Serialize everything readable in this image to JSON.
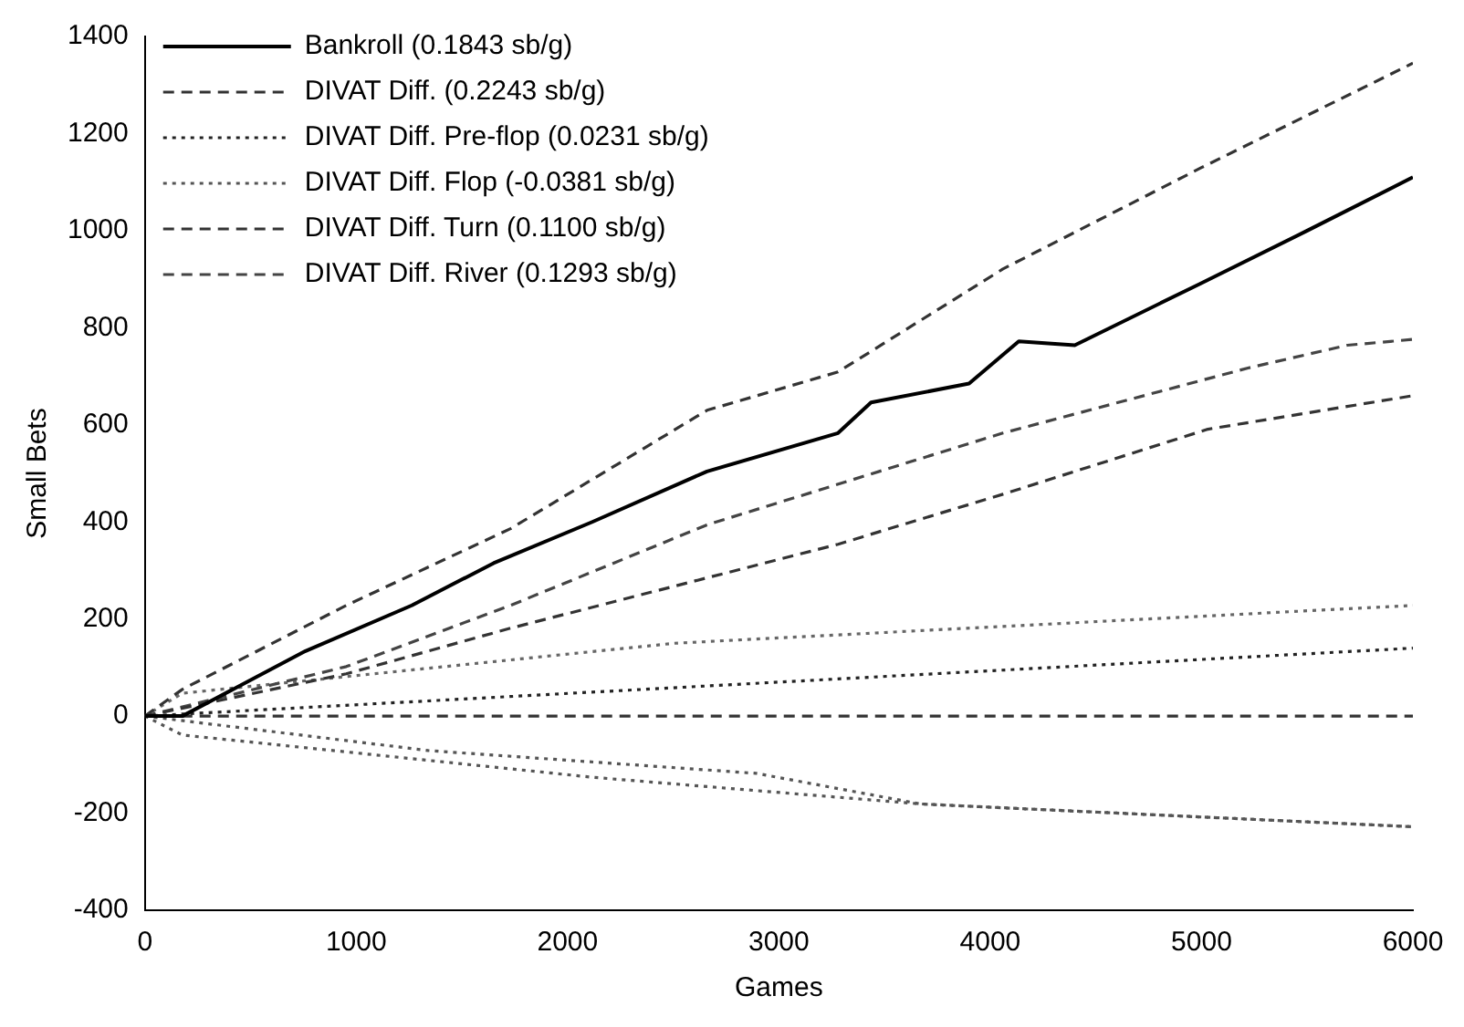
{
  "chart_data": {
    "type": "line",
    "xlabel": "Games",
    "ylabel": "Small Bets",
    "xlim": [
      0,
      6000
    ],
    "xticks": [
      0,
      1000,
      2000,
      3000,
      4000,
      5000,
      6000
    ],
    "ylim": [
      -400,
      1400
    ],
    "yticks": [
      -400,
      -200,
      0,
      200,
      400,
      600,
      800,
      1000,
      1200,
      1400
    ],
    "grid": false,
    "legend": "top left",
    "marker": "none",
    "series": [
      {
        "name": "Bankroll (0.1843 sb/g)",
        "color": "#000000",
        "line_style": "solid",
        "x": [
          0,
          177,
          760,
          1263,
          1650,
          2117,
          2660,
          3280,
          3436,
          3900,
          4135,
          4400,
          4990,
          5500,
          6000
        ],
        "values": [
          0,
          0,
          134,
          228,
          315,
          400,
          504,
          583,
          646,
          685,
          772,
          764,
          890,
          1000,
          1110
        ]
      },
      {
        "name": "DIVAT Diff. (0.2243 sb/g)",
        "color": "#333333",
        "line_style": "dashed",
        "x": [
          0,
          177,
          953,
          1730,
          2660,
          3280,
          4060,
          5000,
          6000
        ],
        "values": [
          0,
          55,
          228,
          386,
          630,
          709,
          921,
          1130,
          1345
        ]
      },
      {
        "name": "DIVAT Diff. Pre-flop (0.0231 sb/g)",
        "color": "#222222",
        "line_style": "dotted",
        "x": [
          0,
          6000
        ],
        "values": [
          0,
          140
        ]
      },
      {
        "name": "DIVAT Diff. Flop (-0.0381 sb/g)",
        "color": "#555555",
        "line_style": "dotted",
        "x": [
          0,
          1341,
          2893,
          3670,
          4060,
          6000
        ],
        "values": [
          0,
          -71,
          -118,
          -181,
          -189,
          -228
        ]
      },
      {
        "name": "DIVAT Diff. Turn (0.1100 sb/g)",
        "color": "#333333",
        "line_style": "dashed",
        "x": [
          0,
          953,
          1730,
          3280,
          4060,
          5030,
          6000
        ],
        "values": [
          0,
          87,
          181,
          354,
          457,
          591,
          660
        ]
      },
      {
        "name": "DIVAT Diff. River (0.1293 sb/g)",
        "color": "#444444",
        "line_style": "dashed",
        "x": [
          0,
          953,
          1730,
          2660,
          4060,
          5220,
          5690,
          6000
        ],
        "values": [
          0,
          102,
          228,
          394,
          583,
          717,
          764,
          776
        ]
      },
      {
        "color": "#666666",
        "line_style": "dotted",
        "x": [
          0,
          177,
          2505,
          6000
        ],
        "values": [
          0,
          47,
          150,
          228
        ]
      },
      {
        "color": "#333333",
        "line_style": "dashed",
        "x": [
          0,
          6000
        ],
        "values": [
          0,
          0
        ]
      },
      {
        "color": "#555555",
        "line_style": "dotted",
        "x": [
          0,
          177,
          2117,
          3670,
          6000
        ],
        "values": [
          0,
          -39,
          -126,
          -181,
          -228
        ]
      }
    ]
  }
}
